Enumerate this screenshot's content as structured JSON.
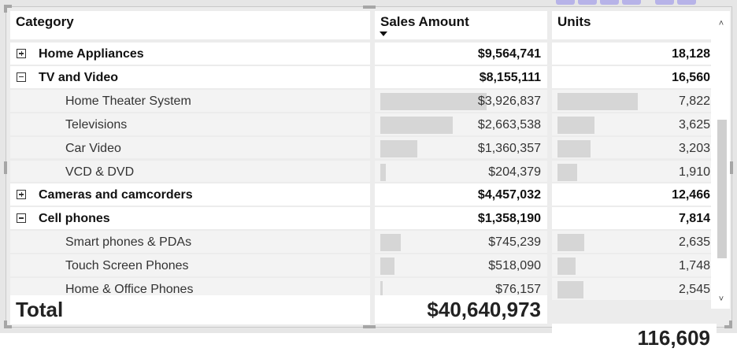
{
  "colors": {
    "bar": "#d6d6d6",
    "sub_row_bg": "#f3f3f3",
    "frame": "#e6e6e6"
  },
  "icons": {
    "expand": "plus-box-icon",
    "collapse": "minus-box-icon",
    "sort": "sort-descending-icon"
  },
  "header": {
    "category": "Category",
    "sales": "Sales Amount",
    "units": "Units"
  },
  "rows": [
    {
      "type": "group",
      "state": "collapsed",
      "label": "Home Appliances",
      "sales": "$9,564,741",
      "units": "18,128"
    },
    {
      "type": "group",
      "state": "expanded",
      "label": "TV and Video",
      "sales": "$8,155,111",
      "units": "16,560"
    },
    {
      "type": "item",
      "label": "Home Theater System",
      "sales": "$3,926,837",
      "units": "7,822",
      "sales_value": 3926837,
      "units_value": 7822
    },
    {
      "type": "item",
      "label": "Televisions",
      "sales": "$2,663,538",
      "units": "3,625",
      "sales_value": 2663538,
      "units_value": 3625
    },
    {
      "type": "item",
      "label": "Car Video",
      "sales": "$1,360,357",
      "units": "3,203",
      "sales_value": 1360357,
      "units_value": 3203
    },
    {
      "type": "item",
      "label": "VCD & DVD",
      "sales": "$204,379",
      "units": "1,910",
      "sales_value": 204379,
      "units_value": 1910
    },
    {
      "type": "group",
      "state": "collapsed",
      "label": "Cameras and camcorders",
      "sales": "$4,457,032",
      "units": "12,466"
    },
    {
      "type": "group",
      "state": "expanded",
      "label": "Cell phones",
      "sales": "$1,358,190",
      "units": "7,814"
    },
    {
      "type": "item",
      "label": "Smart phones & PDAs",
      "sales": "$745,239",
      "units": "2,635",
      "sales_value": 745239,
      "units_value": 2635
    },
    {
      "type": "item",
      "label": "Touch Screen Phones",
      "sales": "$518,090",
      "units": "1,748",
      "sales_value": 518090,
      "units_value": 1748
    },
    {
      "type": "item",
      "label": "Home & Office Phones",
      "sales": "$76,157",
      "units": "2,545",
      "sales_value": 76157,
      "units_value": 2545
    }
  ],
  "total": {
    "label": "Total",
    "sales": "$40,640,973",
    "units": "116,609"
  },
  "scrollbar": {
    "up": "˄",
    "down": "˅"
  }
}
